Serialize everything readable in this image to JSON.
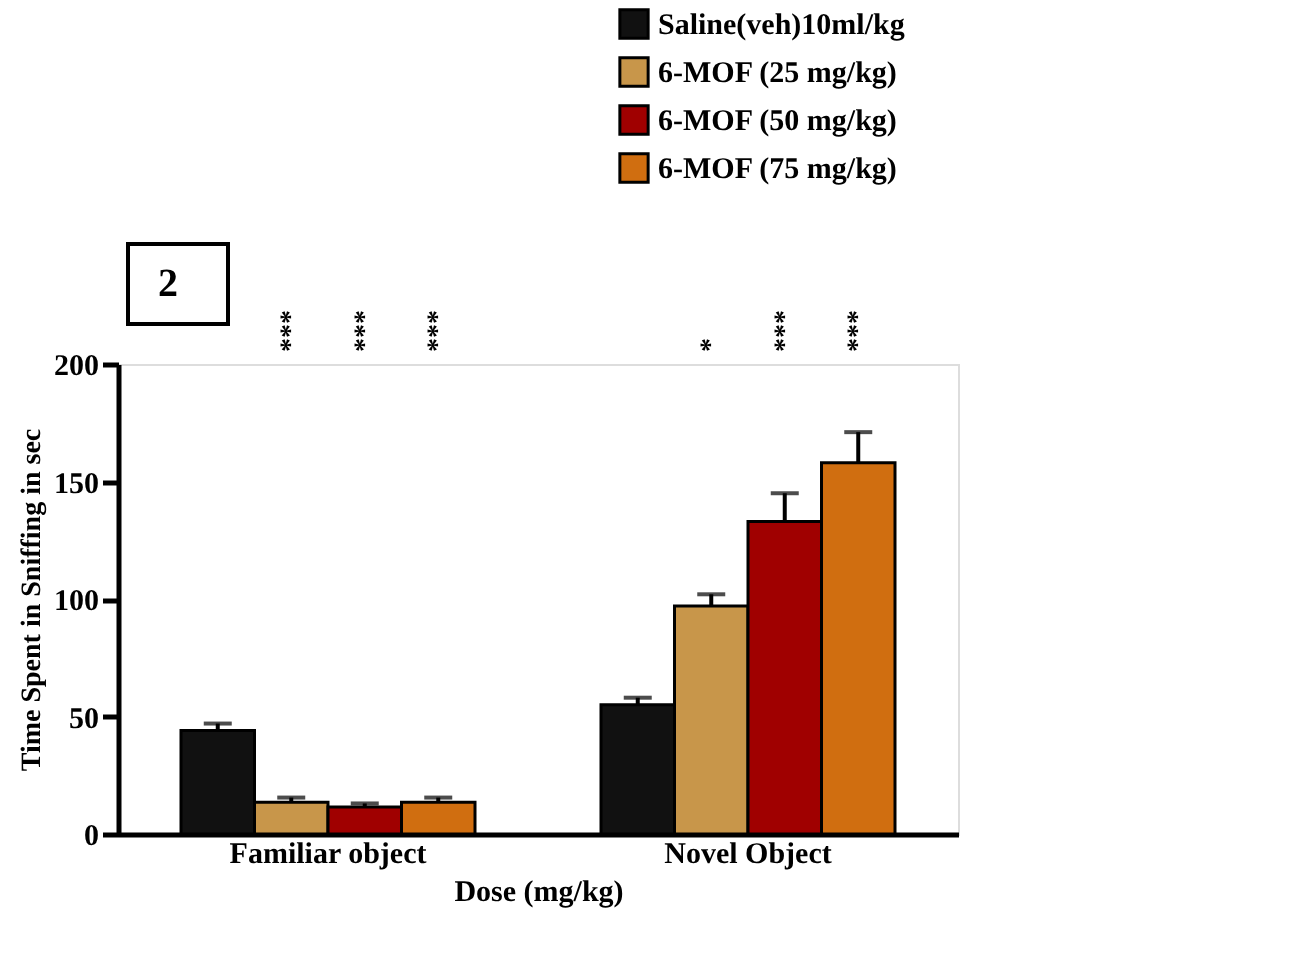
{
  "chart_data": {
    "type": "bar",
    "xlabel": "Dose (mg/kg)",
    "ylabel": "Time Spent in Sniffing in sec",
    "categories": [
      "Familiar object",
      "Novel Object"
    ],
    "series": [
      {
        "name": "Saline(veh)10ml/kg",
        "color": "#111111",
        "values": [
          44,
          55
        ],
        "errors": [
          3,
          3
        ]
      },
      {
        "name": "6-MOF (25 mg/kg)",
        "color": "#c8964a",
        "values": [
          13.5,
          97
        ],
        "errors": [
          2,
          5
        ]
      },
      {
        "name": "6-MOF (50 mg/kg)",
        "color": "#a00000",
        "values": [
          11.5,
          133
        ],
        "errors": [
          1.5,
          12
        ]
      },
      {
        "name": "6-MOF (75 mg/kg)",
        "color": "#d06e10",
        "values": [
          13.5,
          158
        ],
        "errors": [
          2,
          13
        ]
      }
    ],
    "ylim": [
      0,
      200
    ],
    "yticks": [
      0,
      50,
      100,
      150,
      200
    ],
    "grid": false,
    "legend": "top right",
    "annotations": [
      "2",
      "***",
      "***",
      "***",
      "*",
      "***",
      "***"
    ]
  }
}
